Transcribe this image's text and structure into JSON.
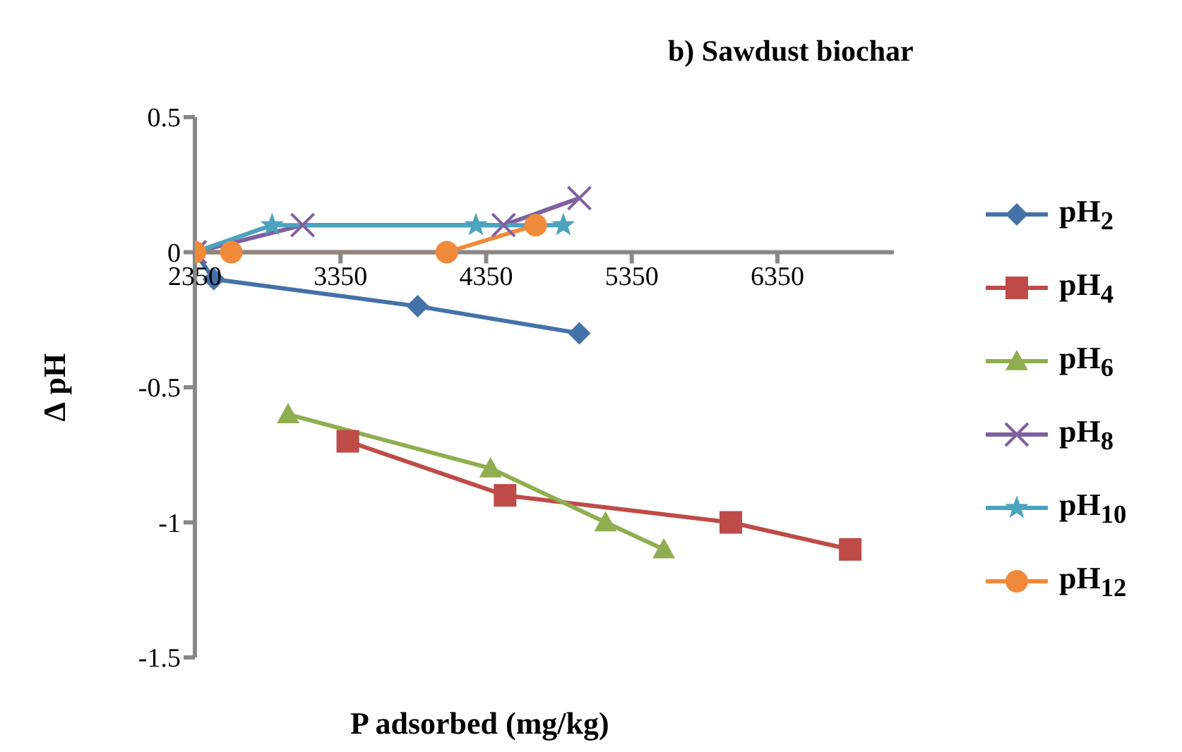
{
  "chart_data": {
    "type": "line",
    "title": "b)  Sawdust biochar",
    "xlabel": "P adsorbed (mg/kg)",
    "ylabel": "∆ pH",
    "xlim": [
      2350,
      7150
    ],
    "xticks": [
      2350,
      3350,
      4350,
      5350,
      6350
    ],
    "ylim": [
      -1.5,
      0.5
    ],
    "yticks": [
      -1.5,
      -1,
      -0.5,
      0,
      0.5
    ],
    "grid": false,
    "legend": "right",
    "series": [
      {
        "name": "pH$_{2}$",
        "color": "#4472a8",
        "marker": "diamond",
        "x": [
          2350,
          2480,
          3880,
          4990
        ],
        "values": [
          0,
          -0.1,
          -0.2,
          -0.3
        ]
      },
      {
        "name": "pH$_{4}$",
        "color": "#be4b48",
        "marker": "square",
        "x": [
          3400,
          4480,
          6030,
          6850
        ],
        "values": [
          -0.7,
          -0.9,
          -1.0,
          -1.1
        ]
      },
      {
        "name": "pH$_{6}$",
        "color": "#8fae4f",
        "marker": "triangle",
        "x": [
          2990,
          4380,
          5170,
          5570
        ],
        "values": [
          -0.6,
          -0.8,
          -1.0,
          -1.1
        ]
      },
      {
        "name": "pH$_{8}$",
        "color": "#7f60a0",
        "marker": "cross",
        "x": [
          2350,
          3090,
          4470,
          4990
        ],
        "values": [
          0,
          0.1,
          0.1,
          0.2
        ]
      },
      {
        "name": "pH$_{10}$",
        "color": "#4ba3bd",
        "marker": "star",
        "x": [
          2350,
          2880,
          4280,
          4880
        ],
        "values": [
          0,
          0.1,
          0.1,
          0.1
        ]
      },
      {
        "name": "pH$_{12}$",
        "color": "#f08a3a",
        "marker": "circle",
        "x": [
          2350,
          2600,
          4080,
          4690
        ],
        "values": [
          0,
          0,
          0,
          0.1
        ]
      }
    ]
  }
}
